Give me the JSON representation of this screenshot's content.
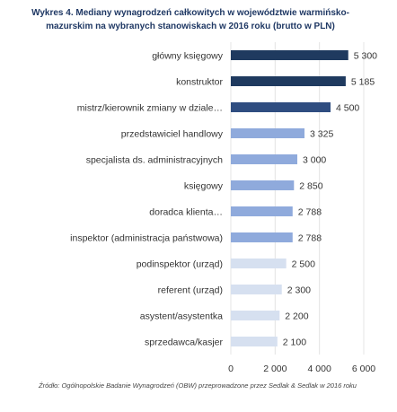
{
  "chart_data": {
    "type": "bar",
    "orientation": "horizontal",
    "title": "Wykres 4. Mediany wynagrodzeń całkowitych w województwie warmińsko-mazurskim na wybranych stanowiskach w 2016 roku (brutto w PLN)",
    "source": "Źródło: Ogólnopolskie Badanie Wynagrodzeń (OBW) przeprowadzone przez Sedlak & Sedlak w 2016 roku",
    "categories": [
      "główny księgowy",
      "konstruktor",
      "mistrz/kierownik zmiany w dziale…",
      "przedstawiciel handlowy",
      "specjalista ds. administracyjnych",
      "księgowy",
      "doradca klienta…",
      "inspektor (administracja państwowa)",
      "podinspektor (urząd)",
      "referent (urząd)",
      "asystent/asystentka",
      "sprzedawca/kasjer"
    ],
    "values": [
      5300,
      5185,
      4500,
      3325,
      3000,
      2850,
      2788,
      2788,
      2500,
      2300,
      2200,
      2100
    ],
    "value_labels": [
      "5 300",
      "5 185",
      "4 500",
      "3 325",
      "3 000",
      "2 850",
      "2 788",
      "2 788",
      "2 500",
      "2 300",
      "2 200",
      "2 100"
    ],
    "colors": [
      "#1f3a5f",
      "#1f3a5f",
      "#2f4d80",
      "#8faadc",
      "#8faadc",
      "#8faadc",
      "#8faadc",
      "#8faadc",
      "#d6e0f0",
      "#d6e0f0",
      "#d6e0f0",
      "#d6e0f0"
    ],
    "xlim": [
      0,
      6000
    ],
    "xticks": [
      0,
      {
        "value": 2000,
        "label": "2 000"
      },
      {
        "value": 4000,
        "label": "4 000"
      },
      {
        "value": 6000,
        "label": "6 000"
      }
    ],
    "grid": true
  }
}
